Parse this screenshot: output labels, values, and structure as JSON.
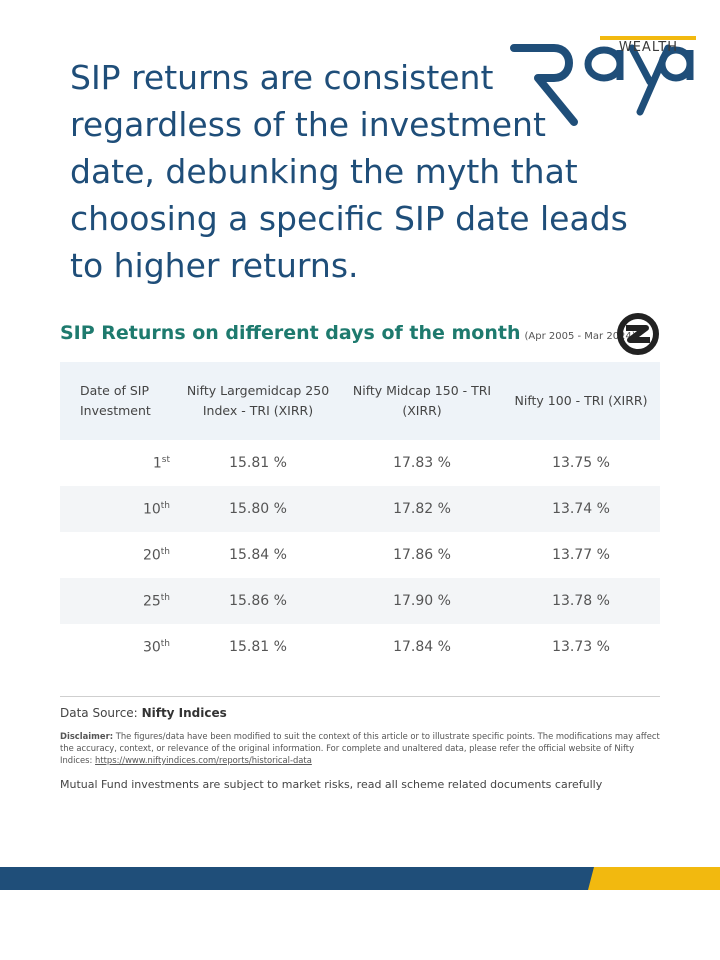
{
  "headline": "SIP returns are consistent regardless of the investment date, debunking the myth that choosing a specific SIP date leads to higher returns.",
  "logo": {
    "wordmark": "Raya",
    "tagline": "WEALTH",
    "colors": {
      "navy": "#1f4e79",
      "gold": "#f2b90f"
    }
  },
  "table": {
    "title": "SIP Returns on different days of the month",
    "period": "(Apr 2005 - Mar 2024)",
    "columns": [
      "Date of SIP Investment",
      "Nifty Largemidcap 250 Index - TRI (XIRR)",
      "Nifty Midcap 150 - TRI (XIRR)",
      "Nifty 100 - TRI (XIRR)"
    ],
    "rows": [
      {
        "day": "1",
        "suffix": "st",
        "largemidcap": "15.81 %",
        "midcap": "17.83 %",
        "nifty100": "13.75 %"
      },
      {
        "day": "10",
        "suffix": "th",
        "largemidcap": "15.80 %",
        "midcap": "17.82 %",
        "nifty100": "13.74 %"
      },
      {
        "day": "20",
        "suffix": "th",
        "largemidcap": "15.84 %",
        "midcap": "17.86 %",
        "nifty100": "13.77 %"
      },
      {
        "day": "25",
        "suffix": "th",
        "largemidcap": "15.86 %",
        "midcap": "17.90 %",
        "nifty100": "13.78 %"
      },
      {
        "day": "30",
        "suffix": "th",
        "largemidcap": "15.81 %",
        "midcap": "17.84 %",
        "nifty100": "13.73 %"
      }
    ]
  },
  "source": {
    "label": "Data Source:",
    "name": "Nifty Indices"
  },
  "disclaimer": {
    "label": "Disclaimer:",
    "text": "The figures/data have been modified to suit the context of this article or to illustrate specific points. The modifications may affect the accuracy, context, or relevance of the original information. For complete and unaltered data, please refer the official website of Nifty Indices:",
    "link": "https://www.niftyindices.com/reports/historical-data"
  },
  "risk_note": "Mutual Fund investments are subject to market risks, read all scheme related documents carefully"
}
